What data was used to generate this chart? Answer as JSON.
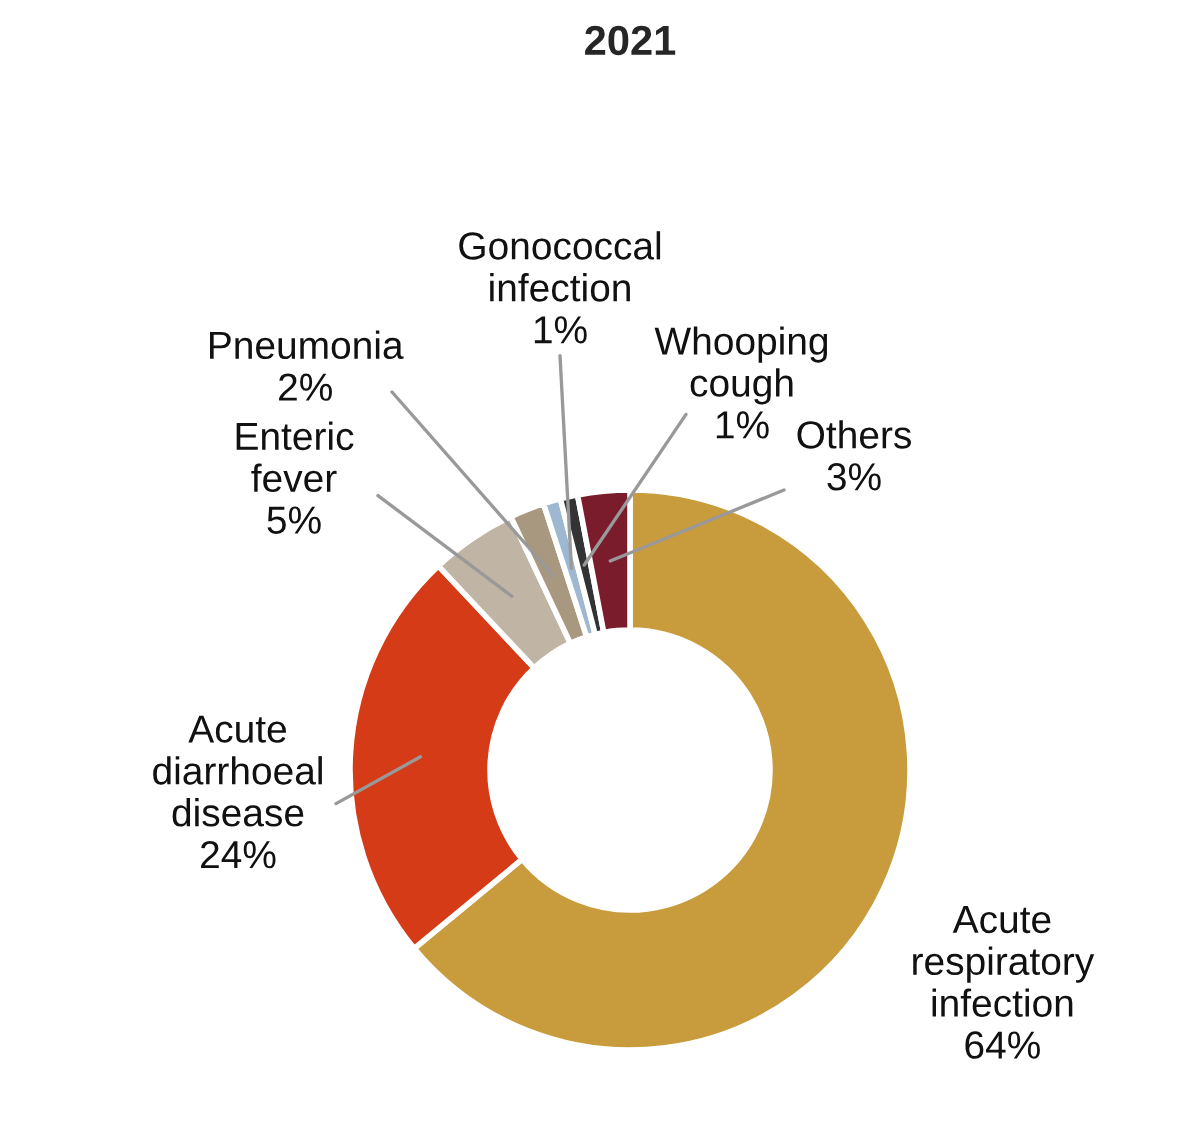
{
  "chart_data": {
    "type": "donut",
    "title": "2021",
    "categories": [
      "Acute\nrespiratory\ninfection",
      "Acute\ndiarrhoeal\ndisease",
      "Enteric\nfever",
      "Pneumonia",
      "Gonococcal\ninfection",
      "Whooping\ncough",
      "Others"
    ],
    "values": [
      64,
      24,
      5,
      2,
      1,
      1,
      3
    ],
    "value_labels": [
      "64%",
      "24%",
      "5%",
      "2%",
      "1%",
      "1%",
      "3%"
    ],
    "colors": [
      "#c89b3c",
      "#d63b17",
      "#c0b5a5",
      "#a89880",
      "#9db8d0",
      "#333333",
      "#7b1c2c"
    ],
    "legend": false
  }
}
